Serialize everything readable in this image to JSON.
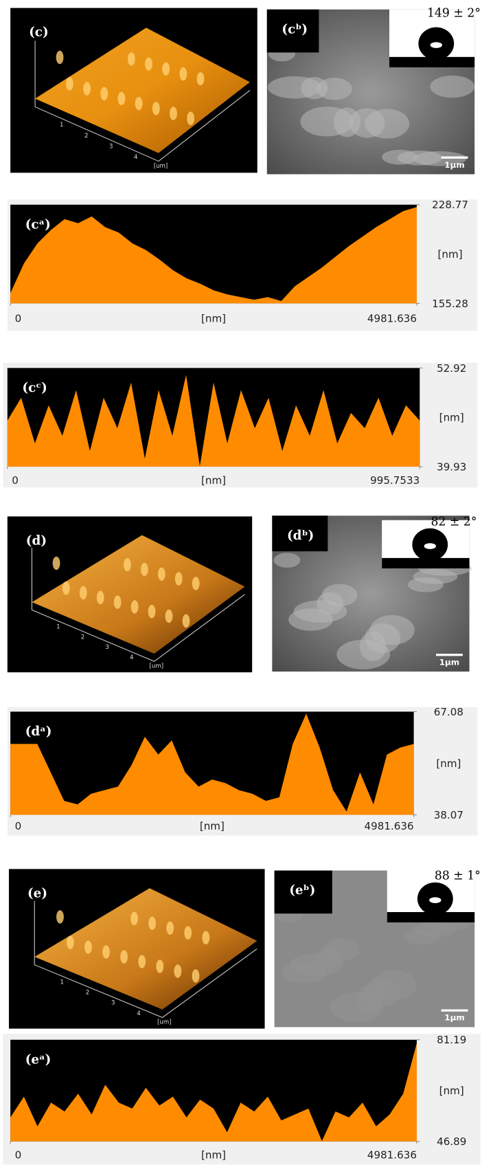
{
  "panels": [
    {
      "label": "(c)",
      "ticks": [
        "1",
        "2",
        "3",
        "4"
      ],
      "unit": "[um]"
    },
    {
      "label": "(cᵇ)",
      "angle": "149 ± 2°",
      "scale": "1μm"
    },
    {
      "label": "(d)",
      "ticks": [
        "1",
        "2",
        "3",
        "4"
      ],
      "unit": "[um]"
    },
    {
      "label": "(dᵇ)",
      "angle": "82 ± 2°",
      "scale": "1μm"
    },
    {
      "label": "(e)",
      "ticks": [
        "1",
        "2",
        "3",
        "4"
      ],
      "unit": "[um]"
    },
    {
      "label": "(eᵇ)",
      "angle": "88 ± 1°",
      "scale": "1μm"
    }
  ],
  "chart_data": [
    {
      "type": "area",
      "label": "(cᵃ)",
      "xlabel": "[nm]",
      "ylabel": "[nm]",
      "color": "#ff8c00",
      "xlim": [
        0,
        4981.636
      ],
      "xticks": [
        0,
        4981.636
      ],
      "ylim": [
        155.28,
        228.77
      ],
      "yticks": [
        155.28,
        228.77
      ],
      "values": [
        163,
        185,
        200,
        210,
        218,
        215,
        220,
        212,
        208,
        200,
        195,
        188,
        180,
        174,
        170,
        165,
        162,
        160,
        158,
        160,
        157,
        168,
        175,
        182,
        190,
        198,
        205,
        212,
        218,
        224,
        227
      ]
    },
    {
      "type": "area",
      "label": "(cᶜ)",
      "xlabel": "[nm]",
      "ylabel": "[nm]",
      "color": "#ff8c00",
      "xlim": [
        0,
        995.7533
      ],
      "xticks": [
        0,
        995.7533
      ],
      "ylim": [
        39.93,
        52.92
      ],
      "yticks": [
        39.93,
        52.92
      ],
      "values": [
        46,
        49,
        43,
        48,
        44,
        50,
        42,
        49,
        45,
        51,
        41,
        50,
        44,
        52,
        40,
        51,
        43,
        50,
        45,
        49,
        42,
        48,
        44,
        50,
        43,
        47,
        45,
        49,
        44,
        48,
        46
      ]
    },
    {
      "type": "area",
      "label": "(dᵃ)",
      "xlabel": "[nm]",
      "ylabel": "[nm]",
      "color": "#ff8c00",
      "xlim": [
        0,
        4981.636
      ],
      "xticks": [
        0,
        4981.636
      ],
      "ylim": [
        38.07,
        67.08
      ],
      "yticks": [
        38.07,
        67.08
      ],
      "values": [
        58,
        58,
        58,
        50,
        42,
        41,
        44,
        45,
        46,
        52,
        60,
        55,
        59,
        50,
        46,
        48,
        47,
        45,
        44,
        42,
        43,
        58,
        66.5,
        57,
        45,
        39,
        50,
        41,
        55,
        57,
        58
      ]
    },
    {
      "type": "area",
      "label": "(eᵃ)",
      "xlabel": "[nm]",
      "ylabel": "[nm]",
      "color": "#ff8c00",
      "xlim": [
        0,
        4981.636
      ],
      "xticks": [
        0,
        4981.636
      ],
      "ylim": [
        46.89,
        81.19
      ],
      "yticks": [
        46.89,
        81.19
      ],
      "values": [
        55,
        62,
        52,
        60,
        57,
        63,
        56,
        66,
        60,
        58,
        65,
        59,
        62,
        55,
        61,
        58,
        50,
        60,
        57,
        62,
        54,
        56,
        58,
        47,
        57,
        55,
        60,
        52,
        56,
        63,
        80
      ]
    }
  ]
}
